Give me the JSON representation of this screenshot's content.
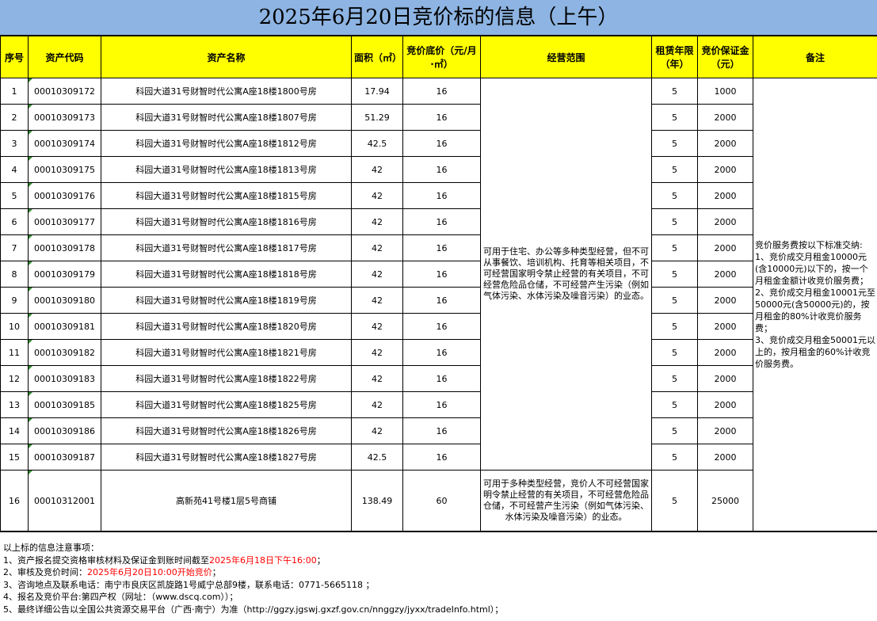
{
  "title": "2025年6月20日竞价标的信息（上午）",
  "headers": [
    "序号",
    "资产代码",
    "资产名称",
    "面积（㎡）",
    "竞价底价（元/月·㎡）",
    "经营范围",
    "租赁年限（年）",
    "竞价保证金（元）",
    "备注"
  ],
  "rows": [
    [
      "1",
      "00010309172",
      "科园大道31号财智时代公寓A座18楼1800号房",
      "17.94",
      "16",
      "5",
      "1000"
    ],
    [
      "2",
      "00010309173",
      "科园大道31号财智时代公寓A座18楼1807号房",
      "51.29",
      "16",
      "5",
      "2000"
    ],
    [
      "3",
      "00010309174",
      "科园大道31号财智时代公寓A座18楼1812号房",
      "42.5",
      "16",
      "5",
      "2000"
    ],
    [
      "4",
      "00010309175",
      "科园大道31号财智时代公寓A座18楼1813号房",
      "42",
      "16",
      "5",
      "2000"
    ],
    [
      "5",
      "00010309176",
      "科园大道31号财智时代公寓A座18楼1815号房",
      "42",
      "16",
      "5",
      "2000"
    ],
    [
      "6",
      "00010309177",
      "科园大道31号财智时代公寓A座18楼1816号房",
      "42",
      "16",
      "5",
      "2000"
    ],
    [
      "7",
      "00010309178",
      "科园大道31号财智时代公寓A座18楼1817号房",
      "42",
      "16",
      "5",
      "2000"
    ],
    [
      "8",
      "00010309179",
      "科园大道31号财智时代公寓A座18楼1818号房",
      "42",
      "16",
      "5",
      "2000"
    ],
    [
      "9",
      "00010309180",
      "科园大道31号财智时代公寓A座18楼1819号房",
      "42",
      "16",
      "5",
      "2000"
    ],
    [
      "10",
      "00010309181",
      "科园大道31号财智时代公寓A座18楼1820号房",
      "42",
      "16",
      "5",
      "2000"
    ],
    [
      "11",
      "00010309182",
      "科园大道31号财智时代公寓A座18楼1821号房",
      "42",
      "16",
      "5",
      "2000"
    ],
    [
      "12",
      "00010309183",
      "科园大道31号财智时代公寓A座18楼1822号房",
      "42",
      "16",
      "5",
      "2000"
    ],
    [
      "13",
      "00010309185",
      "科园大道31号财智时代公寓A座18楼1825号房",
      "42",
      "16",
      "5",
      "2000"
    ],
    [
      "14",
      "00010309186",
      "科园大道31号财智时代公寓A座18楼1826号房",
      "42",
      "16",
      "5",
      "2000"
    ],
    [
      "15",
      "00010309187",
      "科园大道31号财智时代公寓A座18楼1827号房",
      "42.5",
      "16",
      "5",
      "2000"
    ],
    [
      "16",
      "00010312001",
      "高新苑41号楼1层5号商铺",
      "138.49",
      "60",
      "5",
      "25000"
    ]
  ],
  "scope_a": "可用于住宅、办公等多种类型经营，但不可从事餐饮、培训机构、托育等相关项目，不可经营国家明令禁止经营的有关项目，不可经营危险品仓储，不可经营产生污染（例如气体污染、水体污染及噪音污染）的业态。",
  "scope_b": "可用于多种类型经营，竞价人不可经营国家明令禁止经营的有关项目，不可经营危险品仓储，不可经营产生污染（例如气体污染、水体污染及噪音污染）的业态。",
  "remark": "竞价服务费按以下标准交纳:\n1、竞价成交月租金10000元(含10000元)以下的，按一个月租金金额计收竞价服务费；\n2、竞价成交月租金10001元至50000元(含50000元)的，按月租金的80%计收竞价服务费；\n3、竞价成交月租金50001元以上的，按月租金的60%计收竞价服务费。",
  "notes": {
    "heading": "以上标的信息注意事项：",
    "n1_prefix": "1、资产报名提交资格审核材料及保证金到账时间截至",
    "n1_red": "2025年6月18日下午16:00",
    "n1_suffix": "；",
    "n2_prefix": "2、审核及竞价时间：",
    "n2_red": "2025年6月20日10:00开始竞价",
    "n2_suffix": "；",
    "n3": "3、咨询地点及联系电话：南宁市良庆区凯旋路1号威宁总部9楼，联系电话：0771-5665118 ；",
    "n4": "4、报名及竞价平台:第四产权（网址：（www.dscq.com））；",
    "n5": "5、最终详细公告以全国公共资源交易平台（广西·南宁）为准（http://ggzy.jgswj.gxzf.gov.cn/nnggzy/jyxx/tradeInfo.html）；"
  },
  "colors": {
    "title_bg": "#8db4e2",
    "header_bg": "#ffff00",
    "highlight": "#ff0000"
  }
}
